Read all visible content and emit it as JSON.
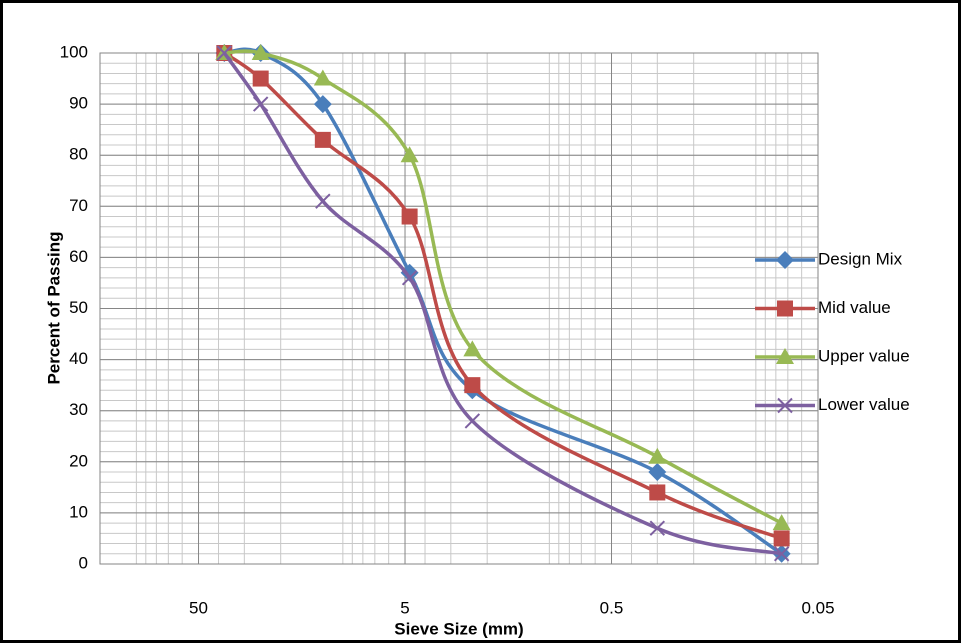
{
  "chart_data": {
    "type": "line",
    "x_label": "Sieve Size (mm)",
    "y_label": "Percent of Passing",
    "x": [
      37.5,
      25,
      12.5,
      4.75,
      2.36,
      0.3,
      0.075
    ],
    "series": [
      {
        "name": "Design Mix",
        "color": "#4a7ebb",
        "marker": "diamond",
        "values": [
          100,
          100,
          90,
          57,
          34,
          18,
          2
        ]
      },
      {
        "name": "Mid value",
        "color": "#be4b48",
        "marker": "square",
        "values": [
          100,
          95,
          83,
          68,
          35,
          14,
          5
        ]
      },
      {
        "name": "Upper value",
        "color": "#98b954",
        "marker": "triangle",
        "values": [
          100,
          100,
          95,
          80,
          42,
          21,
          8
        ]
      },
      {
        "name": "Lower value",
        "color": "#7d60a0",
        "marker": "x",
        "values": [
          100,
          90,
          71,
          56,
          28,
          7,
          2
        ]
      }
    ],
    "xlim": [
      150,
      0.05
    ],
    "xticks": [
      50,
      5,
      0.5,
      0.05
    ],
    "x_log": true,
    "ylim": [
      0,
      100
    ],
    "yticks": [
      0,
      10,
      20,
      30,
      40,
      50,
      60,
      70,
      80,
      90,
      100
    ],
    "grid": true,
    "minor_grid": true,
    "smooth": true,
    "legend": "right"
  }
}
